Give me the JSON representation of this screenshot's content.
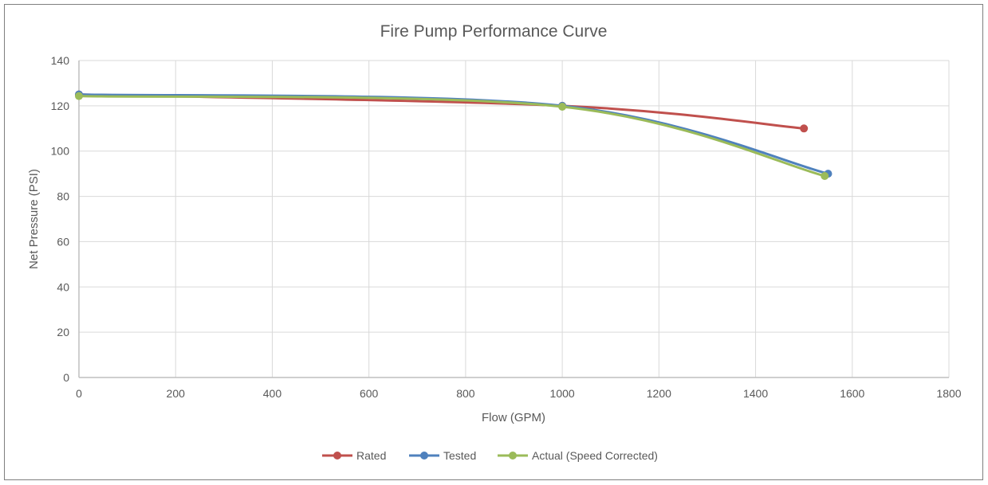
{
  "chart_data": {
    "type": "line",
    "title": "Fire Pump Performance Curve",
    "xlabel": "Flow (GPM)",
    "ylabel": "Net Pressure (PSI)",
    "xlim": [
      0,
      1800
    ],
    "ylim": [
      0,
      140
    ],
    "xticks": [
      0,
      200,
      400,
      600,
      800,
      1000,
      1200,
      1400,
      1600,
      1800
    ],
    "yticks": [
      0,
      20,
      40,
      60,
      80,
      100,
      120,
      140
    ],
    "grid": true,
    "smooth": true,
    "legend_position": "bottom",
    "series": [
      {
        "name": "Rated",
        "color": "#c0504d",
        "points": [
          [
            0,
            125
          ],
          [
            1000,
            120
          ],
          [
            1500,
            110
          ]
        ]
      },
      {
        "name": "Tested",
        "color": "#4f81bd",
        "points": [
          [
            0,
            125
          ],
          [
            1000,
            120
          ],
          [
            1550,
            90
          ]
        ]
      },
      {
        "name": "Actual (Speed Corrected)",
        "color": "#9bbb59",
        "points": [
          [
            0,
            124.3
          ],
          [
            1000,
            119.6
          ],
          [
            1543,
            89
          ]
        ]
      }
    ]
  }
}
